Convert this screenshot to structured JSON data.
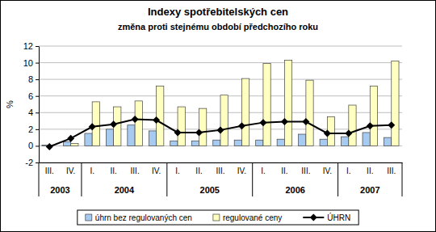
{
  "chart_data": {
    "type": "bar",
    "title": "Indexy spotřebitelských cen",
    "subtitle": "změna proti stejnému období předchozího roku",
    "y_label": "%",
    "categories": [
      "III.",
      "IV.",
      "I.",
      "II.",
      "III.",
      "IV.",
      "I.",
      "II.",
      "III.",
      "IV.",
      "I.",
      "II.",
      "III.",
      "IV.",
      "I.",
      "II.",
      "III."
    ],
    "category_groups": [
      "2003",
      "2004",
      "2005",
      "2006",
      "2007"
    ],
    "group_sizes": [
      2,
      4,
      4,
      4,
      3
    ],
    "series": [
      {
        "name": "úhrn bez regulovaných cen",
        "type": "bar",
        "color": "#a6caf0",
        "values": [
          0.1,
          0.5,
          1.5,
          2.0,
          2.5,
          1.8,
          0.6,
          0.6,
          0.7,
          0.7,
          0.7,
          0.8,
          1.4,
          0.8,
          1.1,
          1.6,
          1.0
        ]
      },
      {
        "name": "regulované ceny",
        "type": "bar",
        "color": "#ffffc0",
        "values": [
          0.0,
          0.3,
          5.3,
          4.7,
          5.4,
          7.2,
          4.7,
          4.5,
          6.1,
          8.1,
          9.9,
          10.3,
          7.9,
          3.5,
          4.9,
          7.2,
          10.2
        ]
      },
      {
        "name": "ÚHRN",
        "type": "line",
        "color": "#000000",
        "marker": "diamond",
        "values": [
          -0.1,
          0.9,
          2.3,
          2.6,
          3.2,
          3.1,
          1.6,
          1.6,
          1.9,
          2.4,
          2.8,
          2.9,
          2.9,
          1.5,
          1.5,
          2.4,
          2.5
        ]
      }
    ],
    "ylim": [
      -2,
      12
    ],
    "yticks": [
      -2,
      0,
      2,
      4,
      6,
      8,
      10,
      12
    ],
    "grid": true,
    "legend": "bottom"
  }
}
